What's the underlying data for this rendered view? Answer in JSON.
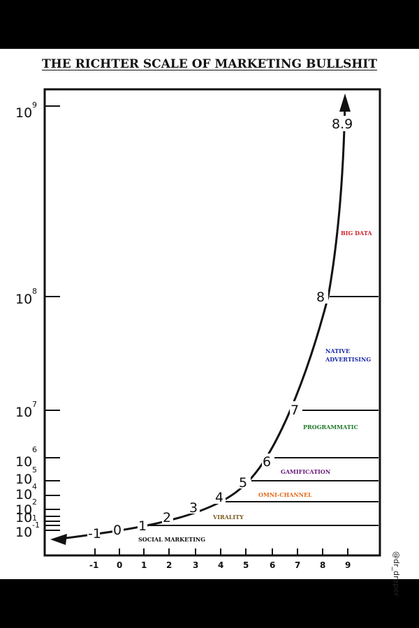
{
  "title": "THE RICHTER SCALE OF MARKETING BULLSHIT",
  "credit": "@dr_draper",
  "y_axis": {
    "labels": [
      {
        "base": "10",
        "exp": "9"
      },
      {
        "base": "10",
        "exp": "8"
      },
      {
        "base": "10",
        "exp": "7"
      },
      {
        "base": "10",
        "exp": "6"
      },
      {
        "base": "10",
        "exp": "5"
      },
      {
        "base": "10",
        "exp": "4"
      },
      {
        "base": "10",
        "exp": "2"
      },
      {
        "base": "10",
        "exp": "1"
      },
      {
        "base": "10",
        "exp": "-1"
      }
    ]
  },
  "x_axis": {
    "ticks": [
      "-1",
      "0",
      "1",
      "2",
      "3",
      "4",
      "5",
      "6",
      "7",
      "8",
      "9"
    ]
  },
  "steps": [
    "-1",
    "0",
    "1",
    "2",
    "3",
    "4",
    "5",
    "6",
    "7",
    "8",
    "8.9"
  ],
  "bands": [
    {
      "label": "SOCIAL MARKETING",
      "color": "#111111"
    },
    {
      "label": "VIRALITY",
      "color": "#7a5a1e"
    },
    {
      "label": "OMNI-CHANNEL",
      "color": "#e06c1a"
    },
    {
      "label": "GAMIFICATION",
      "color": "#6a1b7a"
    },
    {
      "label": "PROGRAMMATIC",
      "color": "#1f7a2a"
    },
    {
      "label": "NATIVE",
      "label2": "ADVERTISING",
      "color": "#1c2aa8"
    },
    {
      "label": "BIG DATA",
      "color": "#d2232a"
    }
  ]
}
